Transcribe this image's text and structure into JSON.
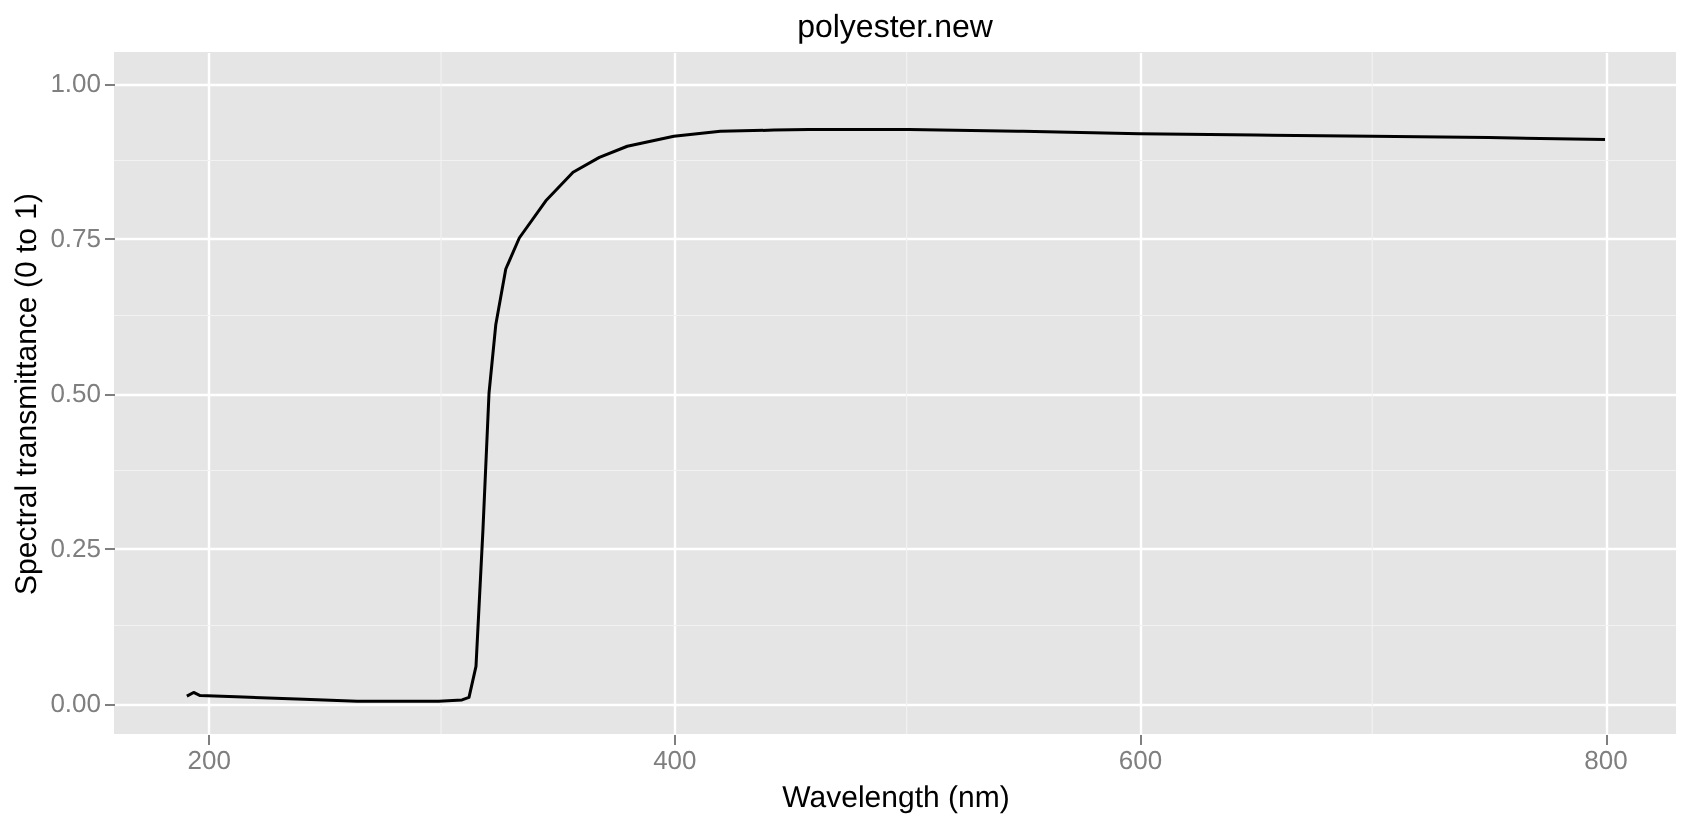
{
  "chart_data": {
    "type": "line",
    "title": "polyester.new",
    "xlabel": "Wavelength (nm)",
    "ylabel": "Spectral transmittance (0 to 1)",
    "xlim": [
      159.5,
      830.5
    ],
    "xticks": [
      200,
      400,
      600,
      800
    ],
    "ylim": [
      -0.05,
      1.05
    ],
    "yticks": [
      {
        "value": 0,
        "label": "0.00"
      },
      {
        "value": 0.25,
        "label": "0.25"
      },
      {
        "value": 0.5,
        "label": "0.50"
      },
      {
        "value": 0.75,
        "label": "0.75"
      },
      {
        "value": 1,
        "label": "1.00"
      }
    ],
    "grid": true,
    "marker": "none",
    "line_style": "solid",
    "series": [
      {
        "color": "#000000",
        "x": [
          190.8,
          193.7,
          196.5,
          212,
          241,
          264,
          299,
          309,
          312,
          315,
          318,
          320.6,
          323.5,
          327.8,
          333.6,
          345,
          356.7,
          368,
          380,
          400,
          420,
          443,
          458,
          501,
          550,
          600,
          650,
          700,
          750,
          800
        ],
        "values": [
          0.011,
          0.017,
          0.012,
          0.01,
          0.006,
          0.003,
          0.003,
          0.005,
          0.009,
          0.059,
          0.28,
          0.5,
          0.61,
          0.7,
          0.75,
          0.81,
          0.856,
          0.88,
          0.898,
          0.914,
          0.922,
          0.924,
          0.925,
          0.925,
          0.922,
          0.918,
          0.916,
          0.914,
          0.912,
          0.909
        ]
      }
    ]
  }
}
